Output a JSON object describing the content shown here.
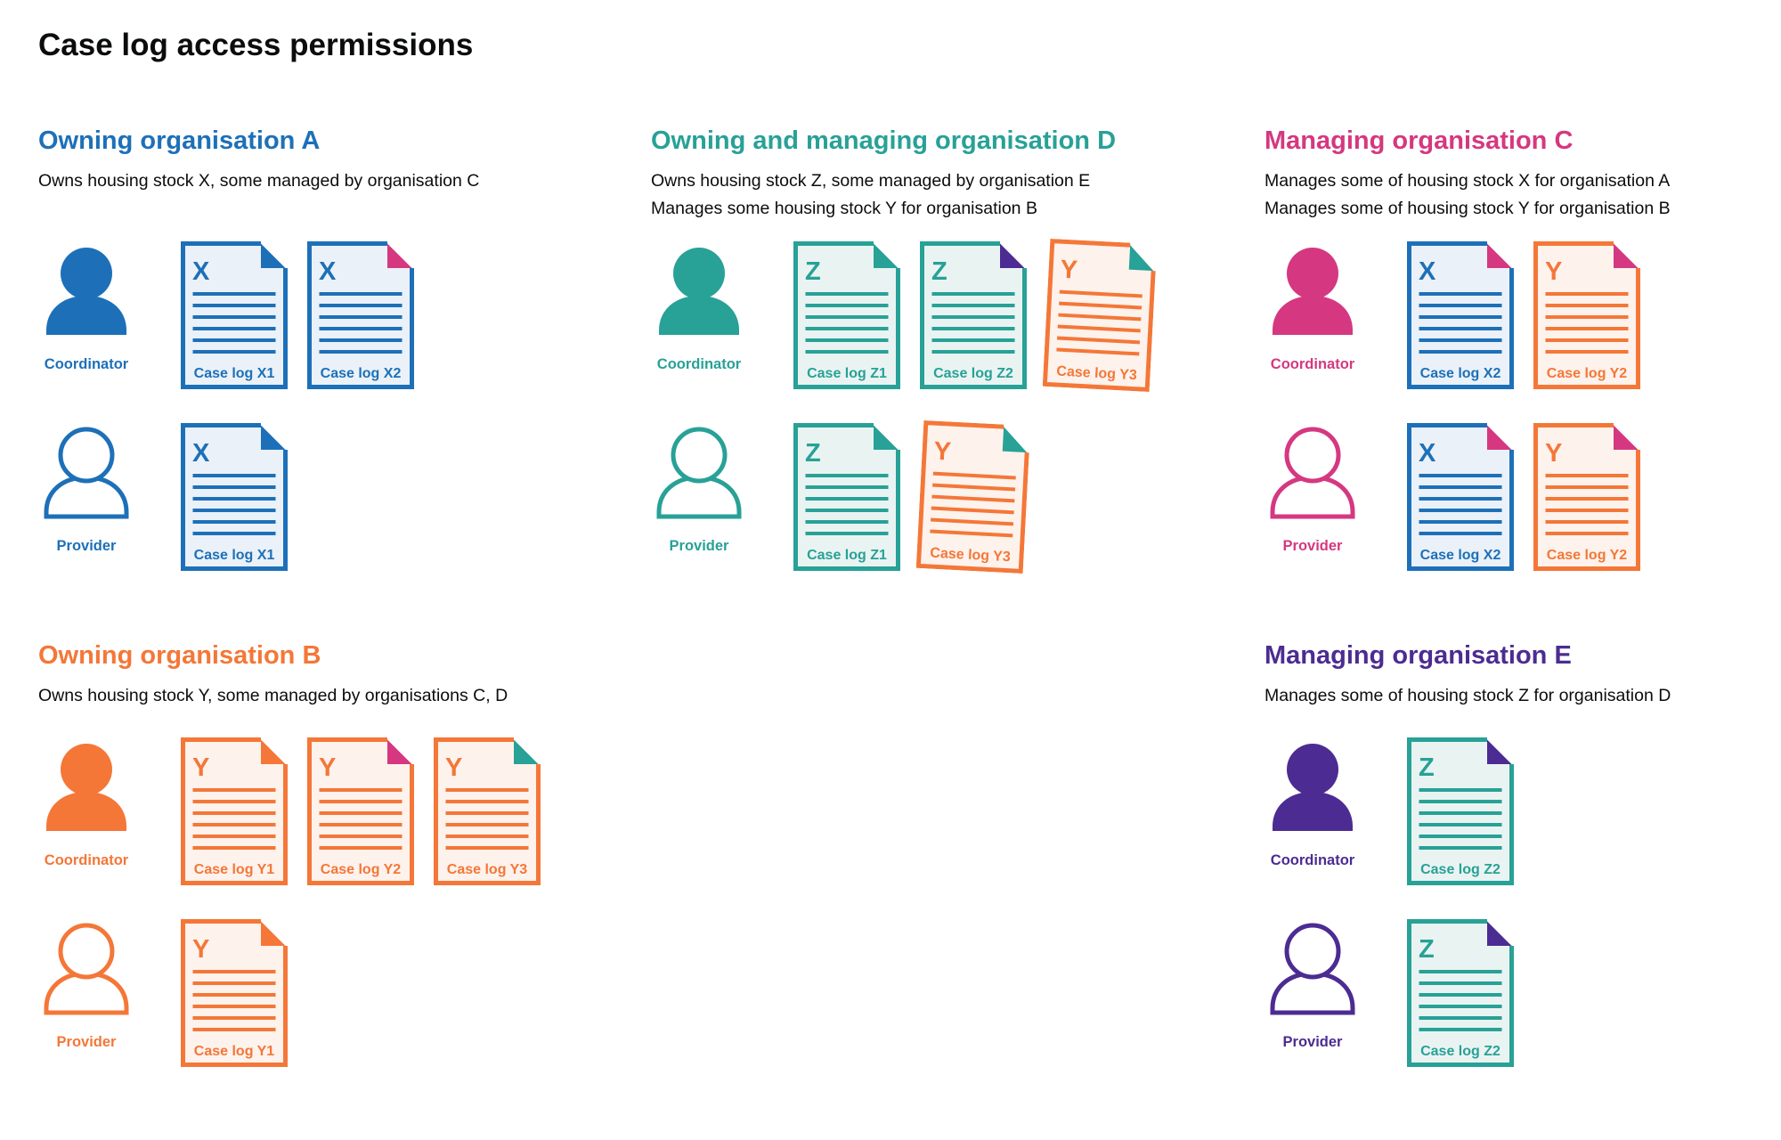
{
  "title": "Case log access permissions",
  "colors": {
    "blue": "#1d70b8",
    "teal": "#28a197",
    "orange": "#f47738",
    "pink": "#d53880",
    "purple": "#4c2c92",
    "text": "#0b0c0c",
    "blue_bg": "#eaf1f8",
    "teal_bg": "#e9f4f2",
    "orange_bg": "#fdf2ec"
  },
  "sections": [
    {
      "id": "org-a",
      "heading": "Owning organisation A",
      "color_key": "blue",
      "description": [
        "Owns housing stock X, some managed by organisation C"
      ],
      "rows": [
        {
          "role": "Coordinator",
          "docs": [
            {
              "letter": "X",
              "label": "Case log X1",
              "doc_color": "blue",
              "fold_color": "blue"
            },
            {
              "letter": "X",
              "label": "Case log X2",
              "doc_color": "blue",
              "fold_color": "pink"
            }
          ]
        },
        {
          "role": "Provider",
          "docs": [
            {
              "letter": "X",
              "label": "Case log X1",
              "doc_color": "blue",
              "fold_color": "blue"
            }
          ]
        }
      ]
    },
    {
      "id": "org-d",
      "heading": "Owning and managing organisation D",
      "color_key": "teal",
      "description": [
        "Owns housing stock Z, some managed by organisation E",
        "Manages some housing stock Y for organisation B"
      ],
      "rows": [
        {
          "role": "Coordinator",
          "docs": [
            {
              "letter": "Z",
              "label": "Case log Z1",
              "doc_color": "teal",
              "fold_color": "teal"
            },
            {
              "letter": "Z",
              "label": "Case log Z2",
              "doc_color": "teal",
              "fold_color": "purple"
            },
            {
              "letter": "Y",
              "label": "Case log Y3",
              "doc_color": "orange",
              "fold_color": "teal",
              "tilt": true
            }
          ]
        },
        {
          "role": "Provider",
          "docs": [
            {
              "letter": "Z",
              "label": "Case log Z1",
              "doc_color": "teal",
              "fold_color": "teal"
            },
            {
              "letter": "Y",
              "label": "Case log Y3",
              "doc_color": "orange",
              "fold_color": "teal",
              "tilt": true
            }
          ]
        }
      ]
    },
    {
      "id": "org-c",
      "heading": "Managing organisation C",
      "color_key": "pink",
      "description": [
        "Manages some of housing stock X for organisation A",
        "Manages some of housing stock Y for organisation B"
      ],
      "rows": [
        {
          "role": "Coordinator",
          "docs": [
            {
              "letter": "X",
              "label": "Case log X2",
              "doc_color": "blue",
              "fold_color": "pink"
            },
            {
              "letter": "Y",
              "label": "Case log Y2",
              "doc_color": "orange",
              "fold_color": "pink"
            }
          ]
        },
        {
          "role": "Provider",
          "docs": [
            {
              "letter": "X",
              "label": "Case log X2",
              "doc_color": "blue",
              "fold_color": "pink"
            },
            {
              "letter": "Y",
              "label": "Case log Y2",
              "doc_color": "orange",
              "fold_color": "pink"
            }
          ]
        }
      ]
    },
    {
      "id": "org-b",
      "heading": "Owning organisation B",
      "color_key": "orange",
      "description": [
        "Owns housing stock Y, some managed by organisations C, D"
      ],
      "rows": [
        {
          "role": "Coordinator",
          "docs": [
            {
              "letter": "Y",
              "label": "Case log Y1",
              "doc_color": "orange",
              "fold_color": "orange"
            },
            {
              "letter": "Y",
              "label": "Case log Y2",
              "doc_color": "orange",
              "fold_color": "pink"
            },
            {
              "letter": "Y",
              "label": "Case log Y3",
              "doc_color": "orange",
              "fold_color": "teal"
            }
          ]
        },
        {
          "role": "Provider",
          "docs": [
            {
              "letter": "Y",
              "label": "Case log Y1",
              "doc_color": "orange",
              "fold_color": "orange"
            }
          ]
        }
      ]
    },
    {
      "id": "org-e",
      "heading": "Managing organisation E",
      "color_key": "purple",
      "description": [
        "Manages some of housing stock Z for organisation D"
      ],
      "rows": [
        {
          "role": "Coordinator",
          "docs": [
            {
              "letter": "Z",
              "label": "Case log Z2",
              "doc_color": "teal",
              "fold_color": "purple"
            }
          ]
        },
        {
          "role": "Provider",
          "docs": [
            {
              "letter": "Z",
              "label": "Case log Z2",
              "doc_color": "teal",
              "fold_color": "purple"
            }
          ]
        }
      ]
    }
  ]
}
